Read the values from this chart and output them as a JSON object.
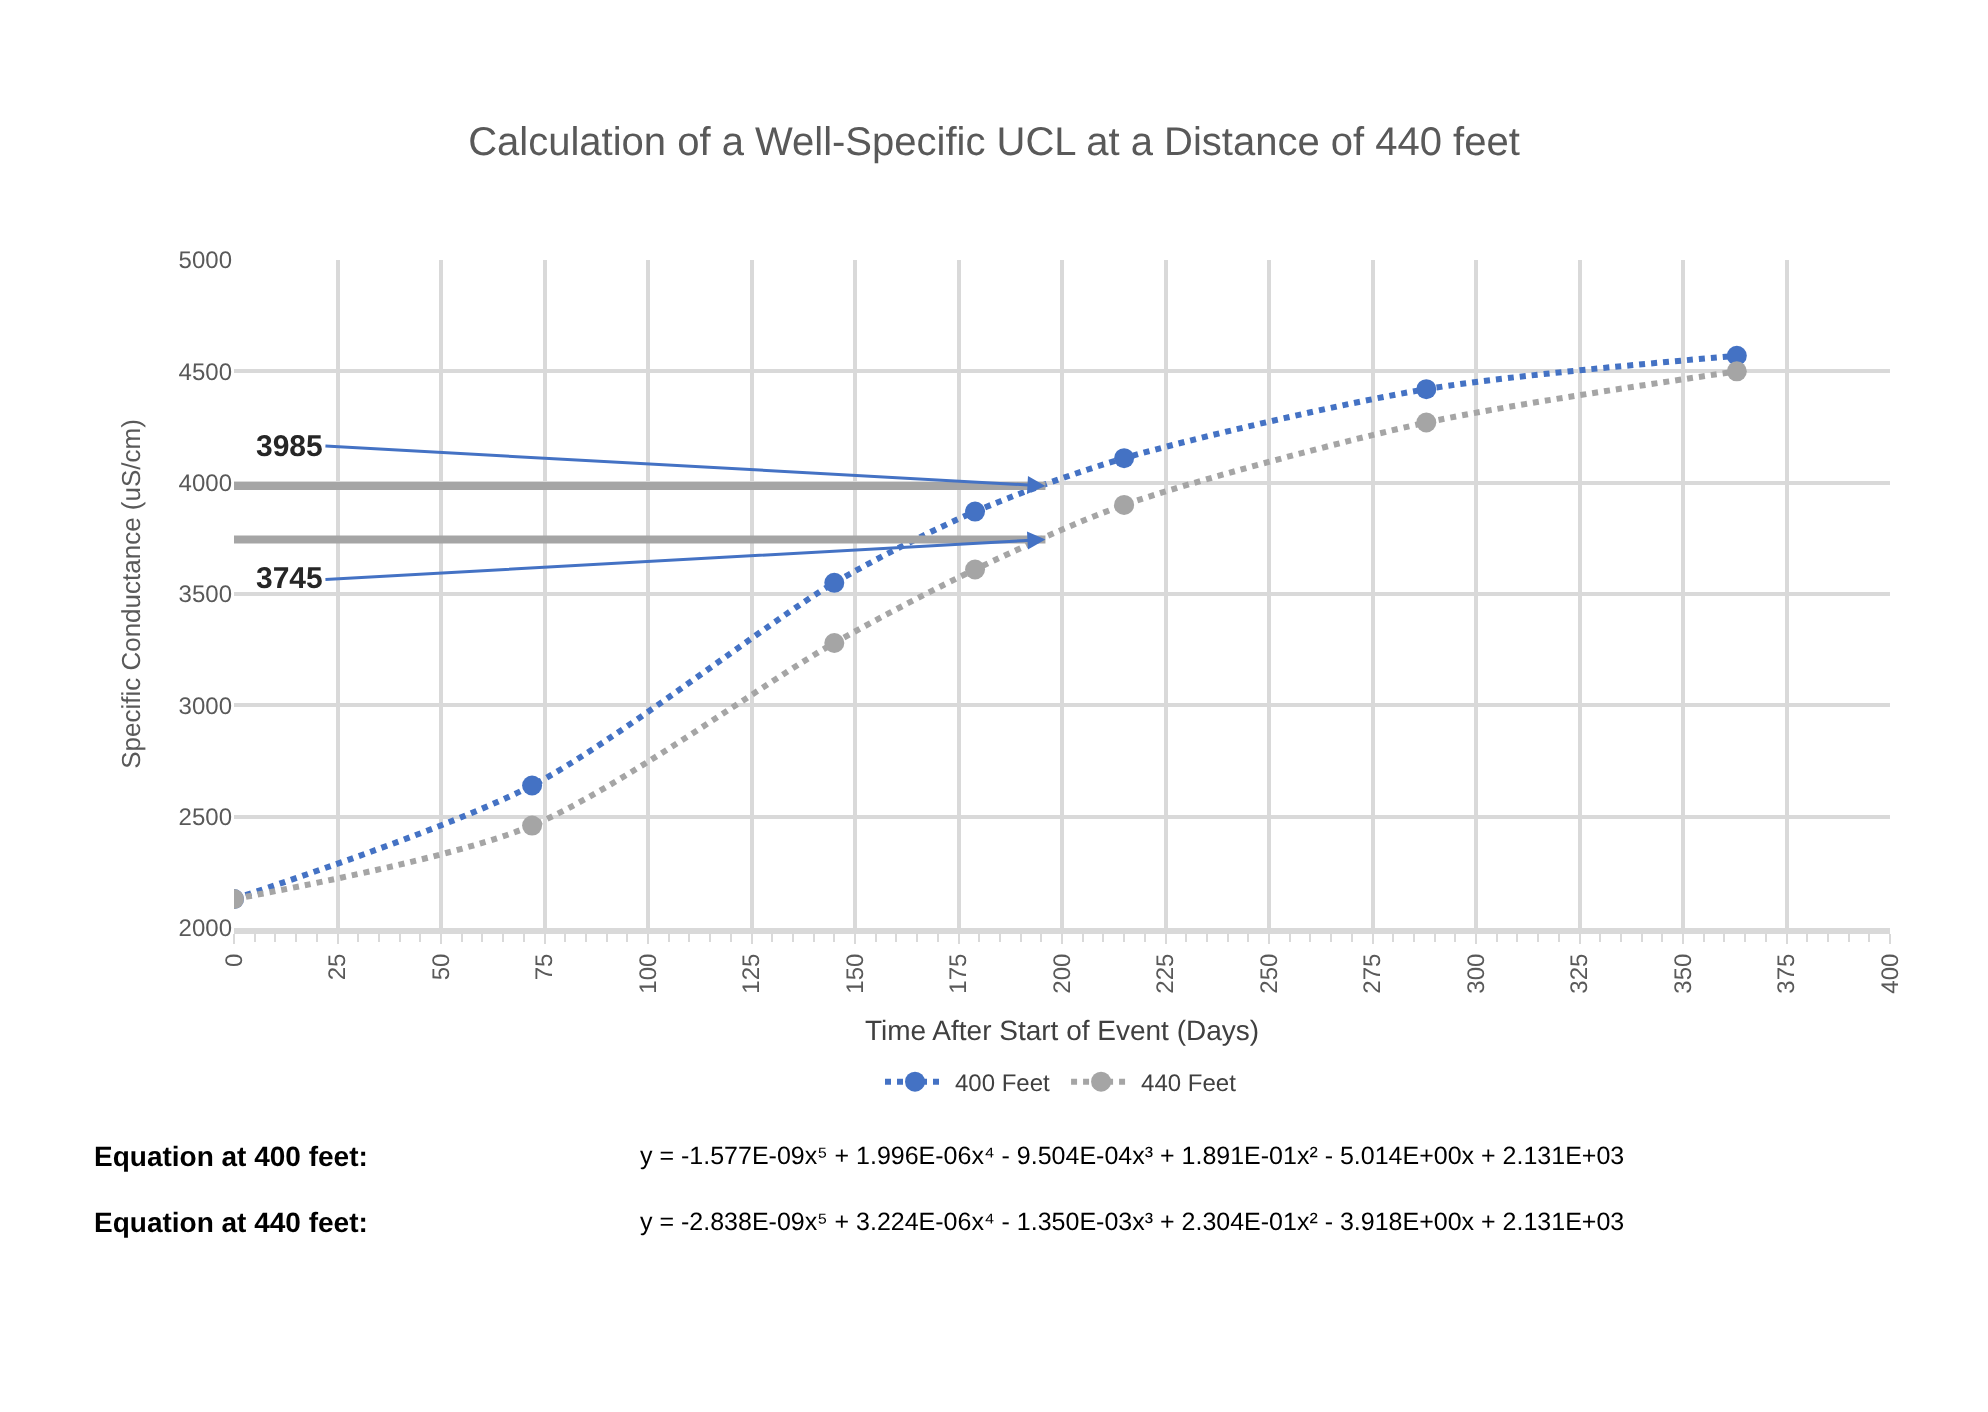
{
  "chart_data": {
    "type": "line",
    "title": "Calculation of a Well-Specific UCL at a Distance of 440 feet",
    "xlabel": "Time After Start of Event (Days)",
    "ylabel": "Specific Conductance (uS/cm)",
    "x": [
      0,
      72,
      145,
      179,
      215,
      288,
      363
    ],
    "series": [
      {
        "name": "400 Feet",
        "color": "#4472c4",
        "values": [
          2130,
          2640,
          3550,
          3870,
          4110,
          4420,
          4570
        ]
      },
      {
        "name": "440 Feet",
        "color": "#a5a5a5",
        "values": [
          2130,
          2460,
          3280,
          3610,
          3900,
          4270,
          4500
        ]
      }
    ],
    "xlim": [
      0,
      400
    ],
    "xticks": [
      0,
      25,
      50,
      75,
      100,
      125,
      150,
      175,
      200,
      225,
      250,
      275,
      300,
      325,
      350,
      375,
      400
    ],
    "ylim": [
      2000,
      5000
    ],
    "yticks": [
      2000,
      2500,
      3000,
      3500,
      4000,
      4500,
      5000
    ],
    "grid": true,
    "legend": "bottom",
    "marker": "circle",
    "line_style": "dotted",
    "annotations": [
      {
        "text": "3985",
        "x": 196,
        "y": 3985
      },
      {
        "text": "3745",
        "x": 196,
        "y": 3745
      },
      "Equation at 400 feet:",
      "y = -1.577E-09x⁵ + 1.996E-06x⁴ - 9.504E-04x³ + 1.891E-01x² - 5.014E+00x + 2.131E+03",
      "Equation at 440 feet:",
      "y = -2.838E-09x⁵ + 3.224E-06x⁴ - 1.350E-03x³ + 2.304E-01x² - 3.918E+00x + 2.131E+03"
    ]
  }
}
